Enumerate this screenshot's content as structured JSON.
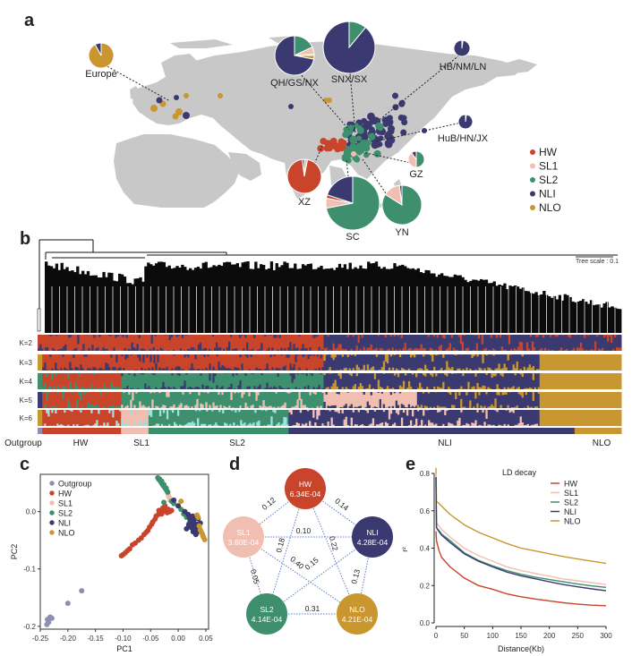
{
  "panels": {
    "a": "a",
    "b": "b",
    "c": "c",
    "d": "d",
    "e": "e"
  },
  "colors": {
    "HW": "#c8442a",
    "SL1": "#f0bfb2",
    "SL2": "#3d8f6e",
    "NLI": "#3b3a70",
    "NLO": "#c9962f",
    "Outgroup": "#8d8fb0",
    "SL2_K6_alt": "#9fe0dc",
    "map_land": "#c8c8c8",
    "edge": "#5b7fc8"
  },
  "chart_data": [
    {
      "id": "map",
      "type": "pie",
      "title": "",
      "legend": {
        "placement": "bottom-right",
        "entries": [
          "HW",
          "SL1",
          "SL2",
          "NLI",
          "NLO"
        ]
      },
      "regions": [
        {
          "name": "Europe",
          "slices": {
            "NLO": 0.92,
            "NLI": 0.08
          }
        },
        {
          "name": "QH/GS/NX",
          "slices": {
            "NLI": 0.72,
            "SL2": 0.18,
            "SL1": 0.06,
            "HW": 0.01,
            "NLO": 0.03
          }
        },
        {
          "name": "SNX/SX",
          "slices": {
            "NLI": 0.89,
            "SL2": 0.11
          }
        },
        {
          "name": "HB/NM/LN",
          "slices": {
            "NLI": 0.98,
            "NLO": 0.02
          }
        },
        {
          "name": "HuB/HN/JX",
          "slices": {
            "NLI": 0.98,
            "NLO": 0.02
          }
        },
        {
          "name": "XZ",
          "slices": {
            "HW": 0.95,
            "SL1": 0.03,
            "NLI": 0.02
          }
        },
        {
          "name": "GZ",
          "slices": {
            "SL2": 0.5,
            "SL1": 0.4,
            "NLI": 0.1
          }
        },
        {
          "name": "SC",
          "slices": {
            "SL2": 0.72,
            "NLI": 0.2,
            "SL1": 0.06,
            "HW": 0.02
          }
        },
        {
          "name": "YN",
          "slices": {
            "SL2": 0.84,
            "SL1": 0.14,
            "NLI": 0.02
          }
        }
      ]
    },
    {
      "id": "tree-admixture",
      "type": "heatmap",
      "tree_scale_label": "Tree scale : 0.1",
      "k_labels": [
        "K=2",
        "K=3",
        "K=4",
        "K=5",
        "K=6"
      ],
      "group_labels": [
        "Outgroup",
        "HW",
        "SL1",
        "SL2",
        "NLI",
        "NLO"
      ],
      "group_fractions": {
        "Outgroup": 0.008,
        "HW": 0.135,
        "SL1": 0.047,
        "SL2": 0.24,
        "NLI": 0.49,
        "NLO": 0.08
      },
      "admixture": {
        "K=2": [
          {
            "from": 0,
            "to": 0.49,
            "main": "HW",
            "minor": "NLI"
          },
          {
            "from": 0.49,
            "to": 1.0,
            "main": "NLI",
            "minor": "HW"
          }
        ],
        "K=3": [
          {
            "from": 0,
            "to": 0.008,
            "main": "NLO"
          },
          {
            "from": 0.008,
            "to": 0.49,
            "main": "HW",
            "minor": "NLI"
          },
          {
            "from": 0.49,
            "to": 0.86,
            "main": "NLI",
            "minor": "NLO"
          },
          {
            "from": 0.86,
            "to": 1.0,
            "main": "NLO"
          }
        ],
        "K=4": [
          {
            "from": 0,
            "to": 0.008,
            "main": "SL2"
          },
          {
            "from": 0.008,
            "to": 0.143,
            "main": "HW",
            "minor": "SL2"
          },
          {
            "from": 0.143,
            "to": 0.49,
            "main": "SL2",
            "minor": "NLI"
          },
          {
            "from": 0.49,
            "to": 0.86,
            "main": "NLI",
            "minor": "NLO"
          },
          {
            "from": 0.86,
            "to": 1.0,
            "main": "NLO"
          }
        ],
        "K=5": [
          {
            "from": 0,
            "to": 0.008,
            "main": "NLI"
          },
          {
            "from": 0.008,
            "to": 0.143,
            "main": "HW",
            "minor": "SL2"
          },
          {
            "from": 0.143,
            "to": 0.49,
            "main": "SL2",
            "minor": "SL1"
          },
          {
            "from": 0.49,
            "to": 0.65,
            "main": "SL1",
            "minor": "NLI"
          },
          {
            "from": 0.65,
            "to": 0.86,
            "main": "NLI",
            "minor": "NLO"
          },
          {
            "from": 0.86,
            "to": 1.0,
            "main": "NLO"
          }
        ],
        "K=6": [
          {
            "from": 0,
            "to": 0.008,
            "main": "NLO"
          },
          {
            "from": 0.008,
            "to": 0.143,
            "main": "HW",
            "minor": "SL2_K6_alt"
          },
          {
            "from": 0.143,
            "to": 0.19,
            "main": "SL1",
            "minor": "SL2_K6_alt"
          },
          {
            "from": 0.19,
            "to": 0.43,
            "main": "SL2",
            "minor": "SL2_K6_alt"
          },
          {
            "from": 0.43,
            "to": 0.49,
            "main": "NLI",
            "minor": "SL1"
          },
          {
            "from": 0.49,
            "to": 0.86,
            "main": "NLI",
            "minor": "SL1"
          },
          {
            "from": 0.86,
            "to": 1.0,
            "main": "NLO"
          }
        ]
      }
    },
    {
      "id": "pca",
      "type": "scatter",
      "xlabel": "PC1",
      "ylabel": "PC2",
      "xlim": [
        -0.25,
        0.055
      ],
      "ylim": [
        -0.205,
        0.065
      ],
      "xticks": [
        "-0.25",
        "-0.20",
        "-0.15",
        "-0.10",
        "-0.05",
        "0.00",
        "0.05"
      ],
      "xtick_values": [
        -0.25,
        -0.2,
        -0.15,
        -0.1,
        -0.05,
        0.0,
        0.05
      ],
      "yticks": [
        "-0.2",
        "-0.1",
        "0.0"
      ],
      "ytick_values": [
        -0.2,
        -0.1,
        0.0
      ],
      "legend": {
        "placement": "top-left",
        "entries": [
          "Outgroup",
          "HW",
          "SL1",
          "SL2",
          "NLI",
          "NLO"
        ]
      },
      "series": [
        {
          "name": "Outgroup",
          "points": [
            [
              -0.175,
              -0.138
            ],
            [
              -0.2,
              -0.16
            ],
            [
              -0.232,
              -0.184
            ],
            [
              -0.237,
              -0.188
            ],
            [
              -0.235,
              -0.193
            ],
            [
              -0.238,
              -0.197
            ],
            [
              -0.229,
              -0.186
            ]
          ]
        },
        {
          "name": "HW",
          "points": [
            [
              -0.103,
              -0.077
            ],
            [
              -0.1,
              -0.075
            ],
            [
              -0.096,
              -0.072
            ],
            [
              -0.092,
              -0.068
            ],
            [
              -0.088,
              -0.065
            ],
            [
              -0.083,
              -0.058
            ],
            [
              -0.078,
              -0.055
            ],
            [
              -0.072,
              -0.05
            ],
            [
              -0.067,
              -0.046
            ],
            [
              -0.062,
              -0.04
            ],
            [
              -0.058,
              -0.036
            ],
            [
              -0.055,
              -0.033
            ],
            [
              -0.052,
              -0.027
            ],
            [
              -0.048,
              -0.022
            ],
            [
              -0.046,
              -0.018
            ],
            [
              -0.042,
              -0.013
            ],
            [
              -0.04,
              -0.008
            ],
            [
              -0.036,
              -0.005
            ],
            [
              -0.032,
              -0.002
            ],
            [
              -0.028,
              0.0
            ],
            [
              -0.025,
              0.004
            ],
            [
              -0.022,
              0.002
            ],
            [
              -0.02,
              -0.002
            ],
            [
              -0.015,
              0.0
            ],
            [
              -0.028,
              0.006
            ],
            [
              -0.024,
              0.01
            ],
            [
              -0.018,
              0.004
            ],
            [
              -0.03,
              -0.004
            ],
            [
              -0.012,
              0.002
            ],
            [
              -0.035,
              0.002
            ]
          ]
        },
        {
          "name": "SL1",
          "points": [
            [
              -0.018,
              0.028
            ],
            [
              -0.016,
              0.024
            ],
            [
              -0.019,
              0.032
            ],
            [
              -0.015,
              0.02
            ],
            [
              -0.017,
              0.026
            ]
          ]
        },
        {
          "name": "SL2",
          "points": [
            [
              -0.037,
              0.059
            ],
            [
              -0.035,
              0.056
            ],
            [
              -0.033,
              0.054
            ],
            [
              -0.031,
              0.051
            ],
            [
              -0.029,
              0.048
            ],
            [
              -0.027,
              0.045
            ],
            [
              -0.025,
              0.043
            ],
            [
              -0.023,
              0.04
            ],
            [
              -0.021,
              0.037
            ],
            [
              -0.019,
              0.034
            ],
            [
              -0.03,
              0.053
            ],
            [
              -0.026,
              0.047
            ],
            [
              -0.022,
              0.041
            ],
            [
              -0.034,
              0.057
            ],
            [
              -0.012,
              0.018
            ],
            [
              -0.008,
              0.014
            ],
            [
              -0.026,
              0.016
            ],
            [
              0.005,
              0.004
            ],
            [
              0.01,
              -0.004
            ],
            [
              0.015,
              -0.01
            ],
            [
              0.022,
              -0.016
            ],
            [
              0.028,
              -0.022
            ],
            [
              0.032,
              -0.026
            ],
            [
              0.02,
              -0.02
            ]
          ]
        },
        {
          "name": "NLI",
          "points": [
            [
              0.0,
              0.01
            ],
            [
              0.012,
              0.0
            ],
            [
              0.018,
              -0.005
            ],
            [
              0.02,
              -0.01
            ],
            [
              0.022,
              -0.015
            ],
            [
              0.025,
              -0.02
            ],
            [
              0.028,
              -0.018
            ],
            [
              0.03,
              -0.025
            ],
            [
              0.033,
              -0.03
            ],
            [
              0.035,
              -0.022
            ],
            [
              0.024,
              -0.028
            ],
            [
              0.027,
              -0.035
            ],
            [
              0.032,
              -0.04
            ],
            [
              0.036,
              -0.012
            ],
            [
              0.038,
              -0.028
            ],
            [
              0.04,
              -0.02
            ],
            [
              0.019,
              -0.023
            ],
            [
              0.026,
              -0.008
            ],
            [
              -0.008,
              0.02
            ],
            [
              0.015,
              -0.03
            ],
            [
              0.03,
              -0.012
            ],
            [
              0.034,
              -0.036
            ]
          ]
        },
        {
          "name": "NLO",
          "points": [
            [
              0.036,
              -0.01
            ],
            [
              0.038,
              -0.025
            ],
            [
              0.04,
              -0.032
            ],
            [
              0.042,
              -0.036
            ],
            [
              0.044,
              -0.04
            ],
            [
              0.046,
              -0.045
            ],
            [
              0.048,
              -0.049
            ],
            [
              0.045,
              -0.043
            ],
            [
              0.005,
              0.018
            ],
            [
              0.034,
              -0.006
            ]
          ]
        }
      ]
    },
    {
      "id": "fst-network",
      "type": "table",
      "nodes": [
        {
          "name": "HW",
          "pi": "6.34E-04"
        },
        {
          "name": "NLI",
          "pi": "4.28E-04"
        },
        {
          "name": "NLO",
          "pi": "4.21E-04"
        },
        {
          "name": "SL2",
          "pi": "4.14E-04"
        },
        {
          "name": "SL1",
          "pi": "3.60E-04"
        }
      ],
      "edges": [
        {
          "from": "HW",
          "to": "SL1",
          "fst": "0.12"
        },
        {
          "from": "HW",
          "to": "NLI",
          "fst": "0.14"
        },
        {
          "from": "SL1",
          "to": "NLI",
          "fst": "0.10"
        },
        {
          "from": "HW",
          "to": "SL2",
          "fst": "0.18"
        },
        {
          "from": "HW",
          "to": "NLO",
          "fst": "0.22"
        },
        {
          "from": "SL1",
          "to": "NLO",
          "fst": "0.40"
        },
        {
          "from": "SL2",
          "to": "NLI",
          "fst": "0.15"
        },
        {
          "from": "SL1",
          "to": "SL2",
          "fst": "0.05"
        },
        {
          "from": "NLI",
          "to": "NLO",
          "fst": "0.13"
        },
        {
          "from": "SL2",
          "to": "NLO",
          "fst": "0.31"
        }
      ]
    },
    {
      "id": "ld-decay",
      "type": "line",
      "title": "LD decay",
      "xlabel": "Distance(Kb)",
      "ylabel": "r²",
      "xlim": [
        0,
        300
      ],
      "ylim": [
        0,
        0.8
      ],
      "xticks": [
        "0",
        "50",
        "100",
        "150",
        "200",
        "250",
        "300"
      ],
      "xtick_values": [
        0,
        50,
        100,
        150,
        200,
        250,
        300
      ],
      "yticks": [
        "0.0",
        "0.2",
        "0.4",
        "0.6",
        "0.8"
      ],
      "ytick_values": [
        0,
        0.2,
        0.4,
        0.6,
        0.8
      ],
      "legend": {
        "placement": "top-right",
        "entries": [
          "HW",
          "SL1",
          "SL2",
          "NLI",
          "NLO"
        ]
      },
      "x": [
        0,
        1,
        5,
        10,
        25,
        50,
        75,
        100,
        125,
        150,
        175,
        200,
        225,
        250,
        275,
        300
      ],
      "series": [
        {
          "name": "HW",
          "values": [
            0.49,
            0.44,
            0.39,
            0.35,
            0.3,
            0.24,
            0.2,
            0.18,
            0.155,
            0.14,
            0.128,
            0.118,
            0.108,
            0.1,
            0.095,
            0.092
          ]
        },
        {
          "name": "SL1",
          "values": [
            0.8,
            0.535,
            0.52,
            0.5,
            0.46,
            0.4,
            0.36,
            0.33,
            0.3,
            0.28,
            0.265,
            0.25,
            0.235,
            0.225,
            0.215,
            0.205
          ]
        },
        {
          "name": "SL2",
          "values": [
            0.78,
            0.51,
            0.495,
            0.475,
            0.44,
            0.375,
            0.335,
            0.305,
            0.28,
            0.26,
            0.245,
            0.232,
            0.22,
            0.208,
            0.198,
            0.19
          ]
        },
        {
          "name": "NLI",
          "values": [
            0.78,
            0.51,
            0.49,
            0.47,
            0.43,
            0.37,
            0.33,
            0.3,
            0.272,
            0.252,
            0.236,
            0.22,
            0.205,
            0.193,
            0.182,
            0.172
          ]
        },
        {
          "name": "NLO",
          "values": [
            0.83,
            0.65,
            0.64,
            0.625,
            0.58,
            0.525,
            0.485,
            0.455,
            0.425,
            0.4,
            0.385,
            0.37,
            0.355,
            0.342,
            0.33,
            0.318
          ]
        }
      ]
    }
  ]
}
